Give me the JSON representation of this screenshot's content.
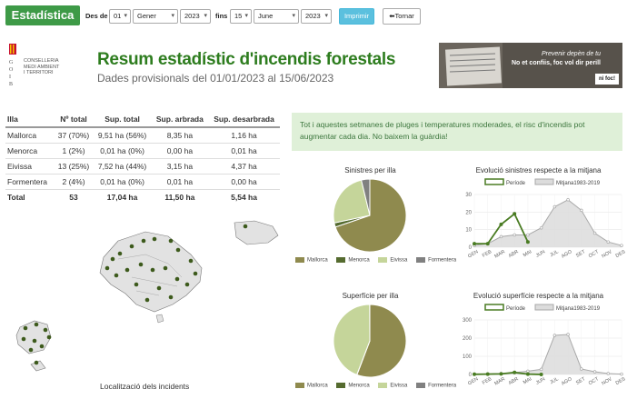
{
  "toolbar": {
    "brand": "Estadística",
    "from_label": "Des de",
    "from_day": "01",
    "from_month": "Gener",
    "from_year": "2023",
    "to_label": "fins",
    "to_day": "15",
    "to_month": "June",
    "to_year": "2023",
    "print_label": "Imprimir",
    "back_label": "Tornar"
  },
  "logo": {
    "lines": [
      "CONSELLERIA",
      "MEDI AMBIENT",
      "I TERRITORI"
    ]
  },
  "header": {
    "title": "Resum estadístic d'incendis forestals",
    "subtitle": "Dades provisionals del 01/01/2023 al 15/06/2023"
  },
  "banner": {
    "line1": "Prevenir depèn de tu",
    "line2": "No et confiis, foc vol dir perill",
    "logo": "ni foc!"
  },
  "table": {
    "headers": [
      "Illa",
      "Nº total",
      "Sup. total",
      "Sup. arbrada",
      "Sup. desarbrada"
    ],
    "rows": [
      [
        "Mallorca",
        "37 (70%)",
        "9,51 ha (56%)",
        "8,35 ha",
        "1,16 ha"
      ],
      [
        "Menorca",
        "1 (2%)",
        "0,01 ha (0%)",
        "0,00 ha",
        "0,01 ha"
      ],
      [
        "Eivissa",
        "13 (25%)",
        "7,52 ha (44%)",
        "3,15 ha",
        "4,37 ha"
      ],
      [
        "Formentera",
        "2 (4%)",
        "0,01 ha (0%)",
        "0,01 ha",
        "0,00 ha"
      ]
    ],
    "total": [
      "Total",
      "53",
      "17,04 ha",
      "11,50 ha",
      "5,54 ha"
    ]
  },
  "alert": {
    "text": "Tot i aquestes setmanes de pluges i temperatures moderades, el risc d'incendis pot augmentar cada dia. No baixem la guàrdia!"
  },
  "colors": {
    "mallorca": "#8f8a4e",
    "menorca": "#556b2f",
    "eivissa": "#c5d59a",
    "formentera": "#808080",
    "period_line": "#4a7c23",
    "average_fill": "#dcdcdc",
    "average_line": "#a9a9a9"
  },
  "map": {
    "label": "Localització dels incidents"
  },
  "chart_data": [
    {
      "type": "pie",
      "title": "Sinistres per illa",
      "categories": [
        "Mallorca",
        "Menorca",
        "Eivissa",
        "Formentera"
      ],
      "values": [
        37,
        1,
        13,
        2
      ]
    },
    {
      "type": "line",
      "title": "Evolució sinistres respecte a la mitjana",
      "categories": [
        "GEN",
        "FEB",
        "MAR",
        "ABR",
        "MAI",
        "JUN",
        "JUL",
        "AGO",
        "SET",
        "OCT",
        "NOV",
        "DES"
      ],
      "ylim": [
        0,
        30
      ],
      "yticks": [
        0,
        10,
        20,
        30
      ],
      "series": [
        {
          "name": "Període",
          "values": [
            2,
            2,
            13,
            19,
            3,
            null,
            null,
            null,
            null,
            null,
            null,
            null
          ]
        },
        {
          "name": "Mitjana1983-2019",
          "values": [
            1,
            2,
            6,
            7,
            7,
            11,
            23,
            27,
            21,
            8,
            3,
            1
          ]
        }
      ]
    },
    {
      "type": "pie",
      "title": "Superfície per illa",
      "categories": [
        "Mallorca",
        "Menorca",
        "Eivissa",
        "Formentera"
      ],
      "values": [
        9.51,
        0.01,
        7.52,
        0.01
      ]
    },
    {
      "type": "line",
      "title": "Evolució superfície respecte a la mitjana",
      "categories": [
        "GEN",
        "FEB",
        "MAR",
        "ABR",
        "MAI",
        "JUN",
        "JUL",
        "AGO",
        "SET",
        "OCT",
        "NOV",
        "DES"
      ],
      "ylim": [
        0,
        300
      ],
      "yticks": [
        0,
        100,
        200,
        300
      ],
      "series": [
        {
          "name": "Període",
          "values": [
            1,
            2,
            3,
            11,
            2,
            0,
            null,
            null,
            null,
            null,
            null,
            null
          ]
        },
        {
          "name": "Mitjana1983-2019",
          "values": [
            1,
            3,
            5,
            10,
            18,
            28,
            215,
            220,
            30,
            15,
            5,
            2
          ]
        }
      ]
    }
  ]
}
